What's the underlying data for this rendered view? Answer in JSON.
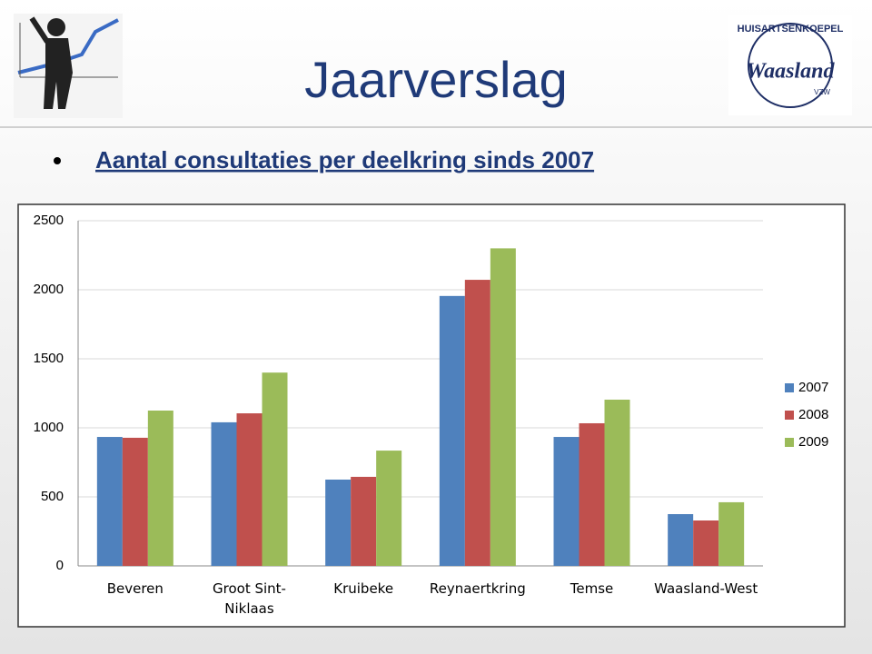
{
  "slide_title": "Jaarverslag",
  "bullet": "Aantal consultaties per deelkring sinds 2007",
  "logo_right": {
    "arc_text": "HUISARTSENKOEPEL",
    "name": "Waasland",
    "sub": "VZW"
  },
  "chart_data": {
    "type": "bar",
    "categories": [
      "Beveren",
      "Groot Sint-Niklaas",
      "Kruibeke",
      "Reynaertkring",
      "Temse",
      "Waasland-West"
    ],
    "series": [
      {
        "name": "2007",
        "color": "#4f81bd",
        "values": [
          934,
          1040,
          625,
          1955,
          934,
          375
        ]
      },
      {
        "name": "2008",
        "color": "#c0504d",
        "values": [
          928,
          1105,
          645,
          2072,
          1033,
          329
        ]
      },
      {
        "name": "2009",
        "color": "#9bbb59",
        "values": [
          1125,
          1400,
          835,
          2300,
          1204,
          461
        ]
      }
    ],
    "ylim": [
      0,
      2500
    ],
    "yticks": [
      0,
      500,
      1000,
      1500,
      2000,
      2500
    ],
    "grid": true,
    "legend": "right"
  }
}
